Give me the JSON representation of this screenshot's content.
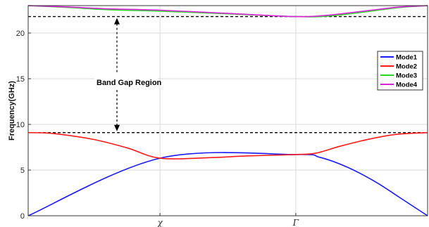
{
  "chart_data": {
    "type": "line",
    "title": "",
    "xlabel": "",
    "ylabel": "Frequency(GHz)",
    "ylim": [
      0,
      23
    ],
    "yticks": [
      0,
      5,
      10,
      15,
      20
    ],
    "xticks": [
      {
        "pos": 0.33,
        "label": "χ"
      },
      {
        "pos": 0.67,
        "label": "Γ"
      }
    ],
    "grid": true,
    "legend_position": "top-right",
    "reference_lines": [
      21.8,
      9.1
    ],
    "annotation": "Band Gap Region",
    "series": [
      {
        "name": "Mode1",
        "color": "#1a1aff",
        "points": [
          [
            0,
            0
          ],
          [
            0.33,
            6.3
          ],
          [
            0.67,
            6.7
          ],
          [
            0.73,
            6.4
          ],
          [
            0.8,
            5.3
          ],
          [
            0.87,
            3.7
          ],
          [
            0.93,
            2.0
          ],
          [
            1.0,
            0
          ]
        ]
      },
      {
        "name": "Mode2",
        "color": "#ff1a1a",
        "points": [
          [
            0,
            9.1
          ],
          [
            0.05,
            9.05
          ],
          [
            0.1,
            8.8
          ],
          [
            0.17,
            8.3
          ],
          [
            0.25,
            7.4
          ],
          [
            0.33,
            6.3
          ],
          [
            0.45,
            6.35
          ],
          [
            0.55,
            6.55
          ],
          [
            0.67,
            6.7
          ],
          [
            0.72,
            6.85
          ],
          [
            0.78,
            7.6
          ],
          [
            0.85,
            8.35
          ],
          [
            0.92,
            8.9
          ],
          [
            1.0,
            9.1
          ]
        ]
      },
      {
        "name": "Mode3",
        "color": "#22dd22",
        "points": [
          [
            0,
            23.0
          ],
          [
            0.1,
            22.8
          ],
          [
            0.2,
            22.55
          ],
          [
            0.33,
            22.4
          ],
          [
            0.5,
            22.1
          ],
          [
            0.67,
            21.8
          ],
          [
            0.75,
            21.85
          ],
          [
            0.85,
            22.35
          ],
          [
            0.93,
            22.8
          ],
          [
            1.0,
            23.0
          ]
        ]
      },
      {
        "name": "Mode4",
        "color": "#dd22dd",
        "points": [
          [
            0,
            23.0
          ],
          [
            0.1,
            22.85
          ],
          [
            0.2,
            22.65
          ],
          [
            0.33,
            22.5
          ],
          [
            0.5,
            22.15
          ],
          [
            0.67,
            21.8
          ],
          [
            0.75,
            21.95
          ],
          [
            0.85,
            22.45
          ],
          [
            0.93,
            22.85
          ],
          [
            1.0,
            23.0
          ]
        ]
      }
    ]
  }
}
